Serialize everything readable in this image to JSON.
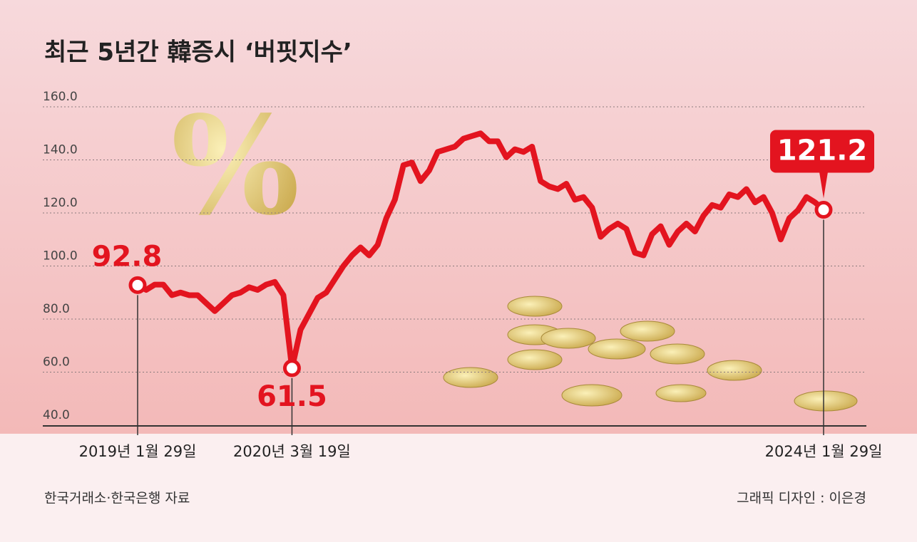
{
  "chart_data": {
    "type": "line",
    "title": "최근 5년간 韓증시 ‘버핏지수’",
    "source": "한국거래소·한국은행 자료",
    "credit": "그래픽 디자인 : 이은경",
    "categories": [
      "2019년 1월 29일",
      null,
      null,
      null,
      null,
      null,
      null,
      null,
      null,
      null,
      null,
      null,
      null,
      null,
      null,
      null,
      null,
      null,
      "2020년 3월 19일",
      null,
      null,
      null,
      null,
      null,
      null,
      null,
      null,
      null,
      null,
      null,
      null,
      null,
      null,
      null,
      null,
      null,
      null,
      null,
      null,
      null,
      null,
      null,
      null,
      null,
      null,
      null,
      null,
      null,
      null,
      null,
      null,
      null,
      null,
      null,
      null,
      null,
      null,
      null,
      null,
      null,
      null,
      null,
      null,
      null,
      null,
      null,
      null,
      null,
      null,
      null,
      null,
      null,
      null,
      null,
      null,
      null,
      null,
      null,
      null,
      null,
      "2024년 1월 29일"
    ],
    "values": [
      92.8,
      91,
      93,
      93,
      89,
      90,
      89,
      89,
      86,
      83,
      86,
      89,
      90,
      92,
      91,
      93,
      94,
      89,
      61.5,
      76,
      82,
      88,
      90,
      95,
      100,
      104,
      107,
      104,
      108,
      118,
      125,
      138,
      139,
      132,
      136,
      143,
      144,
      145,
      148,
      149,
      150,
      147,
      147,
      141,
      144,
      143,
      145,
      132,
      130,
      129,
      131,
      125,
      126,
      122,
      111,
      114,
      116,
      114,
      105,
      104,
      112,
      115,
      108,
      113,
      116,
      113,
      119,
      123,
      122,
      127,
      126,
      129,
      124,
      126,
      120,
      110,
      118,
      121,
      126,
      124,
      121.2
    ],
    "color": "#e3141f",
    "ylim": [
      40,
      160
    ],
    "yticks": [
      {
        "value": 40,
        "label": "40.0"
      },
      {
        "value": 60,
        "label": "60.0"
      },
      {
        "value": 80,
        "label": "80.0"
      },
      {
        "value": 100,
        "label": "100.0"
      },
      {
        "value": 120,
        "label": "120.0"
      },
      {
        "value": 140,
        "label": "140.0"
      },
      {
        "value": 160,
        "label": "160.0"
      }
    ],
    "grid": true
  }
}
